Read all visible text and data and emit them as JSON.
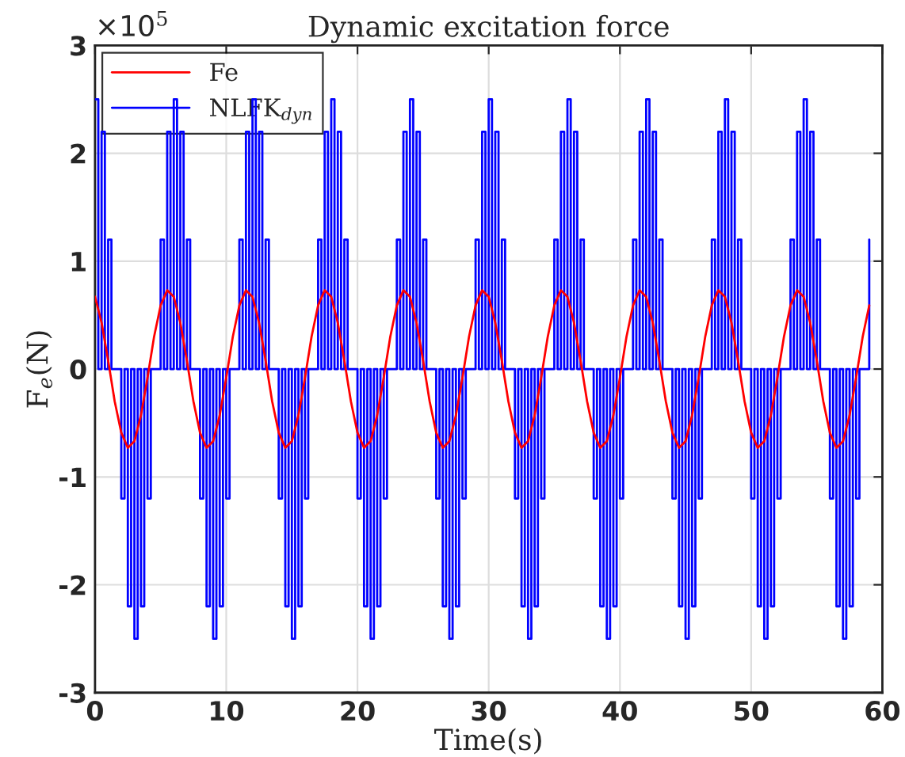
{
  "chart_data": {
    "type": "line",
    "title": "Dynamic excitation force",
    "xlabel": "Time(s)",
    "ylabel": "F$_{e}$(N)",
    "annotations": [
      "×10$^{5}$"
    ],
    "xlim": [
      0,
      60
    ],
    "xticks": [
      0,
      10,
      20,
      30,
      40,
      50,
      60
    ],
    "ylim": [
      -3,
      3
    ],
    "yticks": [
      -3,
      -2,
      -1,
      0,
      1,
      2,
      3
    ],
    "grid": true,
    "legend": "top left",
    "line_style": "solid",
    "marker": "none",
    "series": [
      {
        "name": "Fe",
        "color": "#ff0000",
        "x": [
          0,
          0.5,
          1,
          1.5,
          2,
          2.5,
          3,
          3.5,
          4,
          4.5,
          5,
          5.5,
          6,
          6.5,
          7,
          7.5,
          8,
          8.5,
          9,
          9.5,
          10,
          10.5,
          11,
          11.5,
          12,
          12.5,
          13,
          13.5,
          14,
          14.5,
          15,
          15.5,
          16,
          16.5,
          17,
          17.5,
          18,
          18.5,
          19,
          19.5,
          20,
          20.5,
          21,
          21.5,
          22,
          22.5,
          23,
          23.5,
          24,
          24.5,
          25,
          25.5,
          26,
          26.5,
          27,
          27.5,
          28,
          28.5,
          29,
          29.5,
          30,
          30.5,
          31,
          31.5,
          32,
          32.5,
          33,
          33.5,
          34,
          34.5,
          35,
          35.5,
          36,
          36.5,
          37,
          37.5,
          38,
          38.5,
          39,
          39.5,
          40,
          40.5,
          41,
          41.5,
          42,
          42.5,
          43,
          43.5,
          44,
          44.5,
          45,
          45.5,
          46,
          46.5,
          47,
          47.5,
          48,
          48.5,
          49,
          49.5,
          50,
          50.5,
          51,
          51.5,
          52,
          52.5,
          53,
          53.5,
          54,
          54.5,
          55,
          55.5,
          56,
          56.5,
          57,
          57.5,
          58,
          58.5,
          59
        ],
        "values": [
          0.67,
          0.43,
          0.08,
          -0.3,
          -0.59,
          -0.73,
          -0.67,
          -0.43,
          -0.08,
          0.3,
          0.59,
          0.73,
          0.67,
          0.43,
          0.08,
          -0.3,
          -0.59,
          -0.73,
          -0.67,
          -0.43,
          -0.08,
          0.3,
          0.59,
          0.73,
          0.67,
          0.43,
          0.08,
          -0.3,
          -0.59,
          -0.73,
          -0.67,
          -0.43,
          -0.08,
          0.3,
          0.59,
          0.73,
          0.67,
          0.43,
          0.08,
          -0.3,
          -0.59,
          -0.73,
          -0.67,
          -0.43,
          -0.08,
          0.3,
          0.59,
          0.73,
          0.67,
          0.43,
          0.08,
          -0.3,
          -0.59,
          -0.73,
          -0.67,
          -0.43,
          -0.08,
          0.3,
          0.59,
          0.73,
          0.67,
          0.43,
          0.08,
          -0.3,
          -0.59,
          -0.73,
          -0.67,
          -0.43,
          -0.08,
          0.3,
          0.59,
          0.73,
          0.67,
          0.43,
          0.08,
          -0.3,
          -0.59,
          -0.73,
          -0.67,
          -0.43,
          -0.08,
          0.3,
          0.59,
          0.73,
          0.67,
          0.43,
          0.08,
          -0.3,
          -0.59,
          -0.73,
          -0.67,
          -0.43,
          -0.08,
          0.3,
          0.59,
          0.73,
          0.67,
          0.43,
          0.08,
          -0.3,
          -0.59,
          -0.73,
          -0.67,
          -0.43,
          -0.08,
          0.3,
          0.59,
          0.73,
          0.67,
          0.43,
          0.08,
          -0.3,
          -0.59,
          -0.73,
          -0.67,
          -0.43,
          -0.08,
          0.3,
          0.59
        ]
      },
      {
        "name": "NLFK$_{dyn}$",
        "color": "#0000ff",
        "type": "step",
        "x": [
          0,
          0.25,
          0.5,
          0.75,
          1,
          1.25,
          1.5,
          1.75,
          2,
          2.25,
          2.5,
          2.75,
          3,
          3.25,
          3.5,
          3.75,
          4,
          4.25,
          4.5,
          4.75,
          5,
          5.25,
          5.5,
          5.75,
          6,
          6.25,
          6.5,
          6.75,
          7,
          7.25,
          7.5,
          7.75,
          8,
          8.25,
          8.5,
          8.75,
          9,
          9.25,
          9.5,
          9.75,
          10,
          10.25,
          10.5,
          10.75,
          11,
          11.25,
          11.5,
          11.75,
          12,
          12.25,
          12.5,
          12.75,
          13,
          13.25,
          13.5,
          13.75,
          14,
          14.25,
          14.5,
          14.75,
          15,
          15.25,
          15.5,
          15.75,
          16,
          16.25,
          16.5,
          16.75,
          17,
          17.25,
          17.5,
          17.75,
          18,
          18.25,
          18.5,
          18.75,
          19,
          19.25,
          19.5,
          19.75,
          20,
          20.25,
          20.5,
          20.75,
          21,
          21.25,
          21.5,
          21.75,
          22,
          22.25,
          22.5,
          22.75,
          23,
          23.25,
          23.5,
          23.75,
          24,
          24.25,
          24.5,
          24.75,
          25,
          25.25,
          25.5,
          25.75,
          26,
          26.25,
          26.5,
          26.75,
          27,
          27.25,
          27.5,
          27.75,
          28,
          28.25,
          28.5,
          28.75,
          29,
          29.25,
          29.5,
          29.75,
          30,
          30.25,
          30.5,
          30.75,
          31,
          31.25,
          31.5,
          31.75,
          32,
          32.25,
          32.5,
          32.75,
          33,
          33.25,
          33.5,
          33.75,
          34,
          34.25,
          34.5,
          34.75,
          35,
          35.25,
          35.5,
          35.75,
          36,
          36.25,
          36.5,
          36.75,
          37,
          37.25,
          37.5,
          37.75,
          38,
          38.25,
          38.5,
          38.75,
          39,
          39.25,
          39.5,
          39.75,
          40,
          40.25,
          40.5,
          40.75,
          41,
          41.25,
          41.5,
          41.75,
          42,
          42.25,
          42.5,
          42.75,
          43,
          43.25,
          43.5,
          43.75,
          44,
          44.25,
          44.5,
          44.75,
          45,
          45.25,
          45.5,
          45.75,
          46,
          46.25,
          46.5,
          46.75,
          47,
          47.25,
          47.5,
          47.75,
          48,
          48.25,
          48.5,
          48.75,
          49,
          49.25,
          49.5,
          49.75,
          50,
          50.25,
          50.5,
          50.75,
          51,
          51.25,
          51.5,
          51.75,
          52,
          52.25,
          52.5,
          52.75,
          53,
          53.25,
          53.5,
          53.75,
          54,
          54.25,
          54.5,
          54.75,
          55,
          55.25,
          55.5,
          55.75,
          56,
          56.25,
          56.5,
          56.75,
          57,
          57.25,
          57.5,
          57.75,
          58,
          58.25,
          58.5,
          58.75,
          59
        ],
        "values": [
          2.5,
          0,
          2.2,
          0,
          1.2,
          0,
          0,
          0,
          -1.2,
          0,
          -2.2,
          0,
          -2.5,
          0,
          -2.2,
          0,
          -1.2,
          0,
          0,
          0,
          1.2,
          0,
          2.2,
          0,
          2.5,
          0,
          2.2,
          0,
          1.2,
          0,
          0,
          0,
          -1.2,
          0,
          -2.2,
          0,
          -2.5,
          0,
          -2.2,
          0,
          -1.2,
          0,
          0,
          0,
          1.2,
          0,
          2.2,
          0,
          2.5,
          0,
          2.2,
          0,
          1.2,
          0,
          0,
          0,
          -1.2,
          0,
          -2.2,
          0,
          -2.5,
          0,
          -2.2,
          0,
          -1.2,
          0,
          0,
          0,
          1.2,
          0,
          2.2,
          0,
          2.5,
          0,
          2.2,
          0,
          1.2,
          0,
          0,
          0,
          -1.2,
          0,
          -2.2,
          0,
          -2.5,
          0,
          -2.2,
          0,
          -1.2,
          0,
          0,
          0,
          1.2,
          0,
          2.2,
          0,
          2.5,
          0,
          2.2,
          0,
          1.2,
          0,
          0,
          0,
          -1.2,
          0,
          -2.2,
          0,
          -2.5,
          0,
          -2.2,
          0,
          -1.2,
          0,
          0,
          0,
          1.2,
          0,
          2.2,
          0,
          2.5,
          0,
          2.2,
          0,
          1.2,
          0,
          0,
          0,
          -1.2,
          0,
          -2.2,
          0,
          -2.5,
          0,
          -2.2,
          0,
          -1.2,
          0,
          0,
          0,
          1.2,
          0,
          2.2,
          0,
          2.5,
          0,
          2.2,
          0,
          1.2,
          0,
          0,
          0,
          -1.2,
          0,
          -2.2,
          0,
          -2.5,
          0,
          -2.2,
          0,
          -1.2,
          0,
          0,
          0,
          1.2,
          0,
          2.2,
          0,
          2.5,
          0,
          2.2,
          0,
          1.2,
          0,
          0,
          0,
          -1.2,
          0,
          -2.2,
          0,
          -2.5,
          0,
          -2.2,
          0,
          -1.2,
          0,
          0,
          0,
          1.2,
          0,
          2.2,
          0,
          2.5,
          0,
          2.2,
          0,
          1.2,
          0,
          0,
          0,
          -1.2,
          0,
          -2.2,
          0,
          -2.5,
          0,
          -2.2,
          0,
          -1.2,
          0,
          0,
          0,
          1.2,
          0,
          2.2,
          0,
          2.5,
          0,
          2.2,
          0,
          1.2,
          0,
          0,
          0,
          -1.2,
          0,
          -2.2,
          0,
          -2.5,
          0,
          -2.2,
          0,
          -1.2,
          0,
          0,
          0,
          1.2
        ]
      }
    ]
  }
}
